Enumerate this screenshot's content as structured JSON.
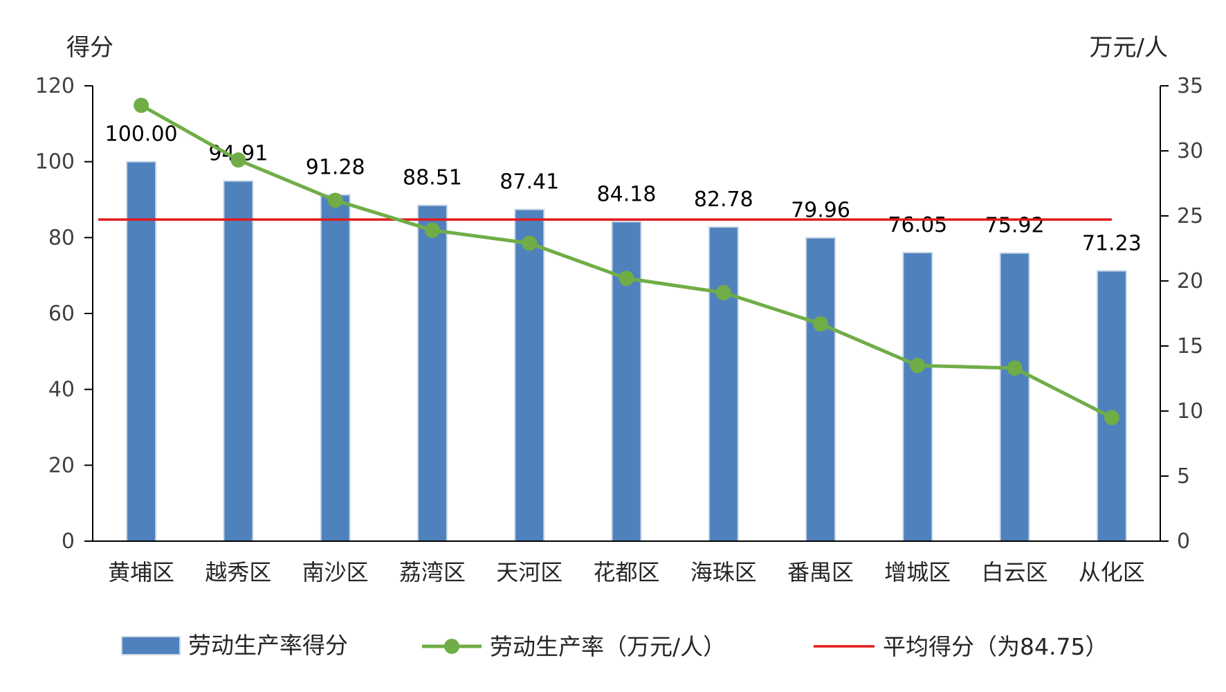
{
  "chart_data": {
    "type": "bar",
    "categories": [
      "黄埔区",
      "越秀区",
      "南沙区",
      "荔湾区",
      "天河区",
      "花都区",
      "海珠区",
      "番禺区",
      "增城区",
      "白云区",
      "从化区"
    ],
    "series": [
      {
        "name": "劳动生产率得分",
        "type": "bar",
        "axis": "left",
        "color": "#4f81bd",
        "values": [
          100.0,
          94.91,
          91.28,
          88.51,
          87.41,
          84.18,
          82.78,
          79.96,
          76.05,
          75.92,
          71.23
        ],
        "labels": [
          "100.00",
          "94.91",
          "91.28",
          "88.51",
          "87.41",
          "84.18",
          "82.78",
          "79.96",
          "76.05",
          "75.92",
          "71.23"
        ]
      },
      {
        "name": "劳动生产率（万元/人）",
        "type": "line",
        "axis": "right",
        "color": "#70ad47",
        "values": [
          33.5,
          29.3,
          26.2,
          23.9,
          22.9,
          20.2,
          19.1,
          16.7,
          13.5,
          13.3,
          9.5
        ]
      }
    ],
    "reference_line": {
      "name": "平均得分（为84.75）",
      "value": 84.75,
      "axis": "left",
      "color": "#e31a1c"
    },
    "left_axis": {
      "unit": "得分",
      "range": [
        0,
        120
      ],
      "ticks": [
        "0",
        "20",
        "40",
        "60",
        "80",
        "100",
        "120"
      ]
    },
    "right_axis": {
      "unit": "万元/人",
      "range": [
        0,
        35
      ],
      "ticks": [
        "0",
        "5",
        "10",
        "15",
        "20",
        "25",
        "30",
        "35"
      ]
    },
    "grid": false,
    "legend_position": "bottom"
  }
}
